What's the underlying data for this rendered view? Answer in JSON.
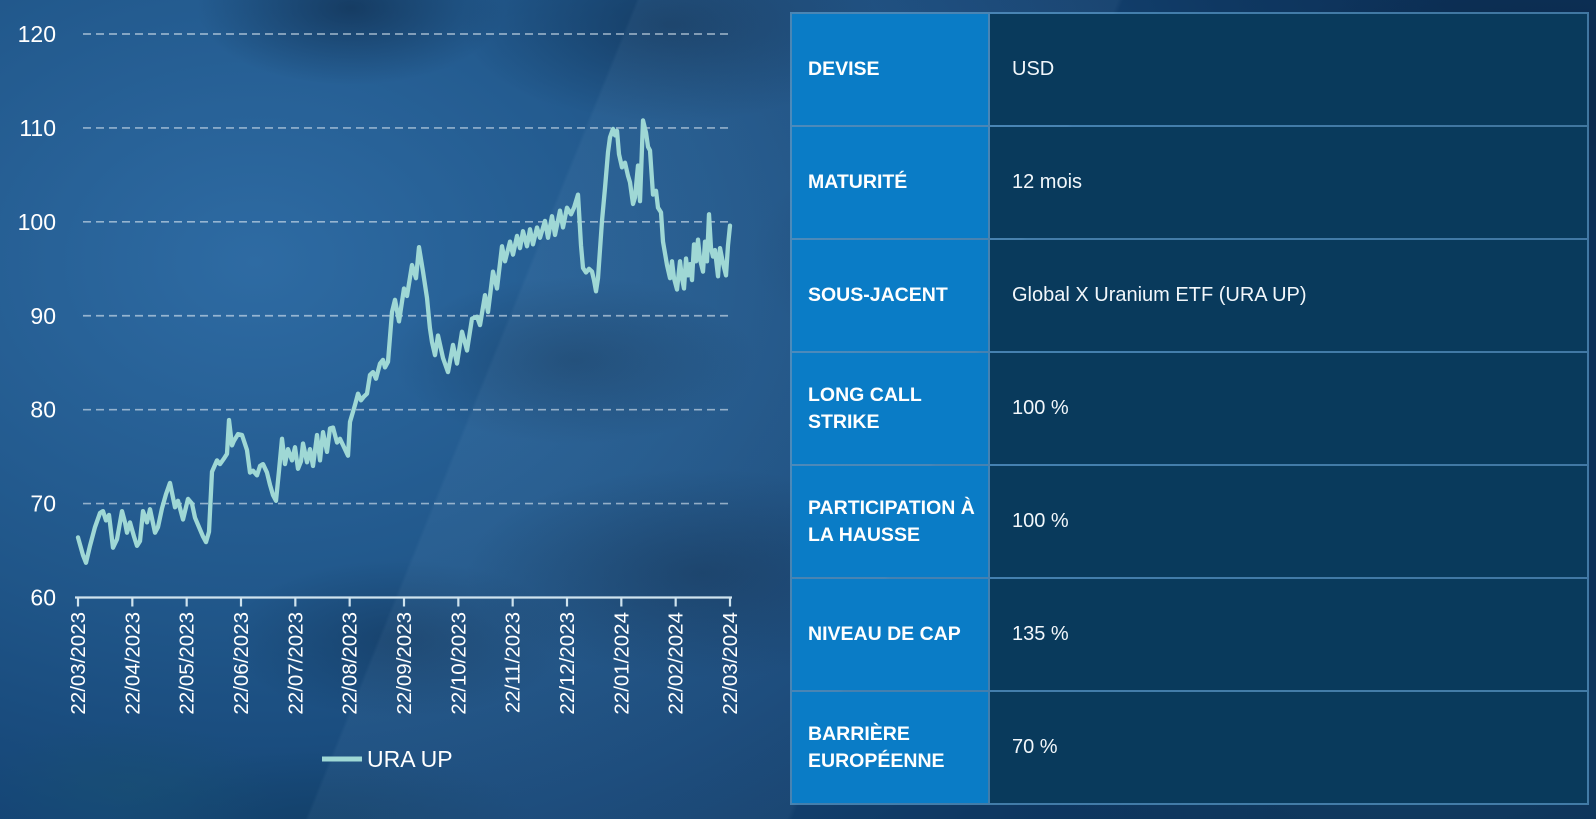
{
  "colors": {
    "series_line": "#9fd8d5",
    "label_cell_bg": "#0a7cc6",
    "value_cell_bg": "#093a5c",
    "table_border": "#6eb4e4",
    "axis": "#cfe3ee",
    "text": "#ffffff"
  },
  "chart_data": {
    "type": "line",
    "title": "",
    "xlabel": "",
    "ylabel": "",
    "ylim": [
      60,
      120
    ],
    "y_ticks": [
      60,
      70,
      80,
      90,
      100,
      110,
      120
    ],
    "grid": "horizontal-dashed",
    "legend_position": "bottom",
    "x_tick_labels": [
      "22/03/2023",
      "22/04/2023",
      "22/05/2023",
      "22/06/2023",
      "22/07/2023",
      "22/08/2023",
      "22/09/2023",
      "22/10/2023",
      "22/11/2023",
      "22/12/2023",
      "22/01/2024",
      "22/02/2024",
      "22/03/2024"
    ],
    "series": [
      {
        "name": "URA UP",
        "points": [
          [
            0.0,
            66.4
          ],
          [
            0.0077,
            64.5
          ],
          [
            0.0123,
            63.7
          ],
          [
            0.0184,
            65.5
          ],
          [
            0.0261,
            67.5
          ],
          [
            0.0337,
            69.0
          ],
          [
            0.0383,
            69.2
          ],
          [
            0.0429,
            68.2
          ],
          [
            0.0475,
            68.8
          ],
          [
            0.0537,
            65.3
          ],
          [
            0.0598,
            66.2
          ],
          [
            0.0675,
            69.2
          ],
          [
            0.0721,
            68.0
          ],
          [
            0.0752,
            66.9
          ],
          [
            0.0798,
            68.0
          ],
          [
            0.0859,
            66.5
          ],
          [
            0.0905,
            65.5
          ],
          [
            0.0951,
            66.0
          ],
          [
            0.0997,
            69.2
          ],
          [
            0.1058,
            68.0
          ],
          [
            0.1104,
            69.4
          ],
          [
            0.1181,
            66.9
          ],
          [
            0.1227,
            67.5
          ],
          [
            0.1288,
            69.5
          ],
          [
            0.135,
            71.0
          ],
          [
            0.1411,
            72.2
          ],
          [
            0.1488,
            69.6
          ],
          [
            0.1534,
            70.3
          ],
          [
            0.161,
            68.3
          ],
          [
            0.1687,
            70.5
          ],
          [
            0.1748,
            70.0
          ],
          [
            0.1794,
            68.5
          ],
          [
            0.1856,
            67.5
          ],
          [
            0.1917,
            66.5
          ],
          [
            0.1963,
            65.9
          ],
          [
            0.2009,
            67.0
          ],
          [
            0.2055,
            73.4
          ],
          [
            0.2132,
            74.6
          ],
          [
            0.2178,
            74.2
          ],
          [
            0.2239,
            74.8
          ],
          [
            0.2285,
            75.3
          ],
          [
            0.2316,
            78.9
          ],
          [
            0.2362,
            76.2
          ],
          [
            0.2393,
            76.7
          ],
          [
            0.2454,
            77.4
          ],
          [
            0.2515,
            77.3
          ],
          [
            0.2592,
            75.7
          ],
          [
            0.2638,
            73.3
          ],
          [
            0.2684,
            73.5
          ],
          [
            0.2745,
            73.0
          ],
          [
            0.2791,
            74.0
          ],
          [
            0.2837,
            74.2
          ],
          [
            0.2899,
            73.3
          ],
          [
            0.2945,
            72.0
          ],
          [
            0.2991,
            70.9
          ],
          [
            0.3037,
            70.3
          ],
          [
            0.3083,
            73.5
          ],
          [
            0.3129,
            76.9
          ],
          [
            0.3175,
            74.2
          ],
          [
            0.3221,
            75.8
          ],
          [
            0.3282,
            74.6
          ],
          [
            0.3328,
            76.0
          ],
          [
            0.3374,
            73.7
          ],
          [
            0.342,
            74.5
          ],
          [
            0.3451,
            76.4
          ],
          [
            0.3512,
            74.4
          ],
          [
            0.3558,
            75.8
          ],
          [
            0.3604,
            74.0
          ],
          [
            0.3666,
            77.3
          ],
          [
            0.3712,
            74.6
          ],
          [
            0.3758,
            77.6
          ],
          [
            0.3819,
            75.5
          ],
          [
            0.3865,
            78.0
          ],
          [
            0.3911,
            78.1
          ],
          [
            0.3972,
            76.5
          ],
          [
            0.4018,
            76.9
          ],
          [
            0.408,
            76.0
          ],
          [
            0.4141,
            75.1
          ],
          [
            0.4172,
            78.7
          ],
          [
            0.4248,
            80.5
          ],
          [
            0.4294,
            81.7
          ],
          [
            0.434,
            81.0
          ],
          [
            0.4386,
            81.4
          ],
          [
            0.4433,
            81.7
          ],
          [
            0.4479,
            83.7
          ],
          [
            0.4525,
            84.0
          ],
          [
            0.4571,
            83.3
          ],
          [
            0.4632,
            84.9
          ],
          [
            0.4678,
            85.3
          ],
          [
            0.4709,
            84.5
          ],
          [
            0.4755,
            85.1
          ],
          [
            0.4816,
            90.4
          ],
          [
            0.4862,
            91.7
          ],
          [
            0.4923,
            89.4
          ],
          [
            0.5,
            92.9
          ],
          [
            0.5046,
            92.1
          ],
          [
            0.5123,
            95.4
          ],
          [
            0.5184,
            94.0
          ],
          [
            0.523,
            97.3
          ],
          [
            0.5291,
            94.7
          ],
          [
            0.5352,
            91.9
          ],
          [
            0.5398,
            88.7
          ],
          [
            0.5429,
            87.2
          ],
          [
            0.5475,
            85.8
          ],
          [
            0.5521,
            87.9
          ],
          [
            0.5598,
            85.5
          ],
          [
            0.5675,
            84.0
          ],
          [
            0.5752,
            86.9
          ],
          [
            0.5813,
            84.9
          ],
          [
            0.589,
            88.3
          ],
          [
            0.5966,
            86.3
          ],
          [
            0.6043,
            89.7
          ],
          [
            0.612,
            89.9
          ],
          [
            0.6166,
            89.0
          ],
          [
            0.6242,
            92.2
          ],
          [
            0.6288,
            90.4
          ],
          [
            0.6365,
            94.7
          ],
          [
            0.6426,
            92.9
          ],
          [
            0.6503,
            97.4
          ],
          [
            0.6549,
            95.8
          ],
          [
            0.6626,
            97.9
          ],
          [
            0.6672,
            96.5
          ],
          [
            0.6733,
            98.5
          ],
          [
            0.6779,
            97.2
          ],
          [
            0.6825,
            99.0
          ],
          [
            0.6887,
            97.4
          ],
          [
            0.6933,
            99.2
          ],
          [
            0.6979,
            97.6
          ],
          [
            0.704,
            99.4
          ],
          [
            0.7086,
            98.3
          ],
          [
            0.7163,
            100.1
          ],
          [
            0.7209,
            98.3
          ],
          [
            0.727,
            100.6
          ],
          [
            0.7316,
            98.6
          ],
          [
            0.7393,
            101.2
          ],
          [
            0.7439,
            99.4
          ],
          [
            0.75,
            101.5
          ],
          [
            0.7561,
            100.8
          ],
          [
            0.7607,
            101.5
          ],
          [
            0.7669,
            102.9
          ],
          [
            0.7715,
            97.5
          ],
          [
            0.7745,
            95.1
          ],
          [
            0.7791,
            94.6
          ],
          [
            0.7837,
            95.0
          ],
          [
            0.7883,
            94.7
          ],
          [
            0.7914,
            93.8
          ],
          [
            0.7945,
            92.6
          ],
          [
            0.7975,
            94.0
          ],
          [
            0.8037,
            100.1
          ],
          [
            0.8083,
            103.6
          ],
          [
            0.8129,
            107.4
          ],
          [
            0.816,
            109.0
          ],
          [
            0.8206,
            109.9
          ],
          [
            0.8237,
            109.2
          ],
          [
            0.8267,
            109.7
          ],
          [
            0.8298,
            107.2
          ],
          [
            0.8344,
            105.8
          ],
          [
            0.839,
            106.3
          ],
          [
            0.8436,
            104.9
          ],
          [
            0.8466,
            104.2
          ],
          [
            0.8512,
            101.9
          ],
          [
            0.8543,
            102.6
          ],
          [
            0.8589,
            106.0
          ],
          [
            0.862,
            102.2
          ],
          [
            0.8666,
            110.8
          ],
          [
            0.8712,
            109.5
          ],
          [
            0.8742,
            108.0
          ],
          [
            0.8773,
            107.6
          ],
          [
            0.8819,
            102.9
          ],
          [
            0.8865,
            103.3
          ],
          [
            0.8896,
            101.5
          ],
          [
            0.8942,
            101.0
          ],
          [
            0.8972,
            97.9
          ],
          [
            0.9034,
            95.4
          ],
          [
            0.908,
            94.0
          ],
          [
            0.911,
            95.8
          ],
          [
            0.9141,
            94.0
          ],
          [
            0.9187,
            92.8
          ],
          [
            0.9233,
            95.8
          ],
          [
            0.9264,
            94.0
          ],
          [
            0.9294,
            92.9
          ],
          [
            0.9325,
            96.1
          ],
          [
            0.9356,
            94.3
          ],
          [
            0.9387,
            95.5
          ],
          [
            0.9417,
            93.8
          ],
          [
            0.9448,
            97.6
          ],
          [
            0.9479,
            95.8
          ],
          [
            0.9509,
            98.1
          ],
          [
            0.954,
            96.0
          ],
          [
            0.9586,
            94.7
          ],
          [
            0.9617,
            97.9
          ],
          [
            0.9648,
            95.8
          ],
          [
            0.9678,
            100.8
          ],
          [
            0.9709,
            97.2
          ],
          [
            0.974,
            96.3
          ],
          [
            0.977,
            97.0
          ],
          [
            0.9816,
            94.2
          ],
          [
            0.9847,
            97.2
          ],
          [
            0.9893,
            95.6
          ],
          [
            0.9939,
            94.3
          ],
          [
            0.9969,
            97.5
          ],
          [
            1.0,
            99.6
          ]
        ]
      }
    ]
  },
  "legend": {
    "label": "URA UP"
  },
  "table": {
    "rows": [
      {
        "label": "DEVISE",
        "value": "USD"
      },
      {
        "label": "MATURITÉ",
        "value": "12 mois"
      },
      {
        "label": "SOUS-JACENT",
        "value": "Global X Uranium ETF (URA UP)"
      },
      {
        "label": "LONG CALL STRIKE",
        "value": "100 %"
      },
      {
        "label": "PARTICIPATION À LA HAUSSE",
        "value": "100 %"
      },
      {
        "label": "NIVEAU DE CAP",
        "value": "135 %"
      },
      {
        "label": "BARRIÈRE EUROPÉENNE",
        "value": "70 %"
      }
    ]
  }
}
